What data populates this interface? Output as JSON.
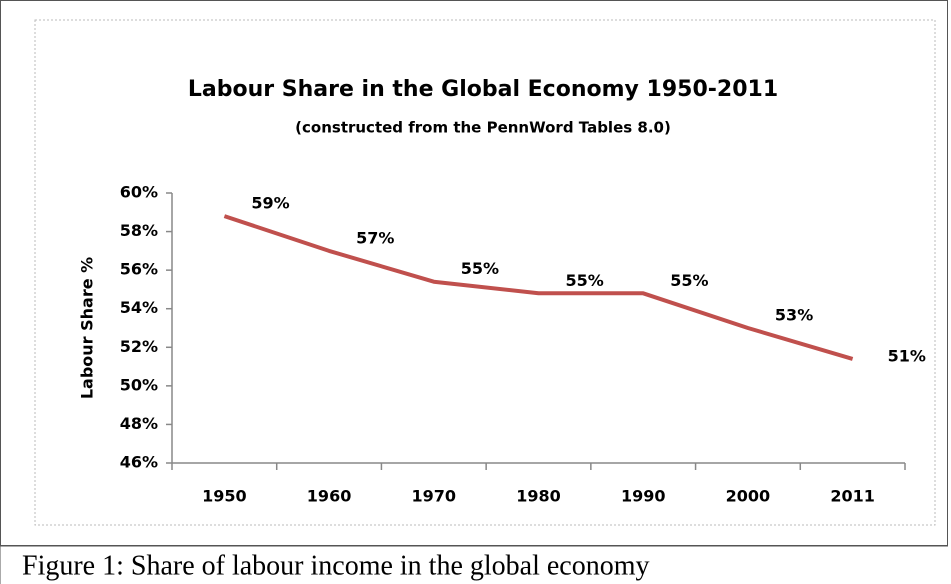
{
  "chart_data": {
    "type": "line",
    "title": "Labour Share  in the Global Economy 1950-2011",
    "subtitle": "(constructed from the PennWord Tables 8.0)",
    "y_label": "Labour Share %",
    "categories": [
      "1950",
      "1960",
      "1970",
      "1980",
      "1990",
      "2000",
      "2011"
    ],
    "series": [
      {
        "color": "#c0504d",
        "values": [
          58.8,
          57.0,
          55.4,
          54.8,
          54.8,
          53.0,
          51.4
        ],
        "value_labels": [
          "59%",
          "57%",
          "55%",
          "55%",
          "55%",
          "53%",
          "51%"
        ]
      }
    ],
    "ylim": [
      46,
      60
    ],
    "yticks": [
      {
        "value": 46,
        "label": "46%"
      },
      {
        "value": 48,
        "label": "48%"
      },
      {
        "value": 50,
        "label": "50%"
      },
      {
        "value": 52,
        "label": "52%"
      },
      {
        "value": 54,
        "label": "54%"
      },
      {
        "value": 56,
        "label": "56%"
      },
      {
        "value": 58,
        "label": "58%"
      },
      {
        "value": 60,
        "label": "60%"
      }
    ],
    "grid": false
  },
  "caption": "Figure 1: Share of labour income in the global economy"
}
